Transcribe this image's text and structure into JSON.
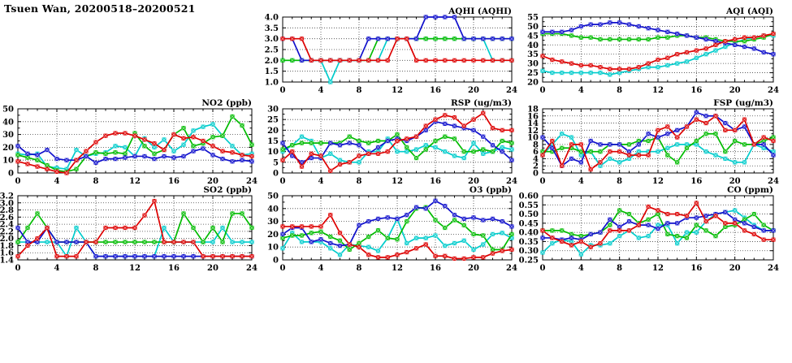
{
  "page_title": "Tsuen Wan, 20200518–20200521",
  "series_colors": {
    "blue": "#1010cc",
    "red": "#dd0000",
    "green": "#00bb00",
    "cyan": "#00cccc"
  },
  "chart_data": [
    {
      "id": "aqhi",
      "type": "line",
      "title": "AQHI (AQHI)",
      "xlim": [
        0,
        24
      ],
      "xtick_step": 4,
      "xminor_step": 1,
      "ylim": [
        1.0,
        4.0
      ],
      "ytick_step": 0.5,
      "ytick_decimals": 1,
      "yminor": false,
      "grid": true,
      "legend": "none",
      "series": [
        {
          "name": "cyan",
          "color": "#00cccc",
          "values": [
            2,
            2,
            2,
            2,
            2,
            1,
            2,
            2,
            2,
            2,
            2,
            3,
            3,
            3,
            3,
            3,
            3,
            3,
            3,
            3,
            3,
            3,
            2,
            2,
            2
          ]
        },
        {
          "name": "green",
          "color": "#00bb00",
          "values": [
            2,
            2,
            2,
            2,
            2,
            2,
            2,
            2,
            2,
            2,
            3,
            3,
            3,
            3,
            3,
            3,
            3,
            3,
            3,
            3,
            3,
            3,
            3,
            3,
            3
          ]
        },
        {
          "name": "blue",
          "color": "#1010cc",
          "values": [
            3,
            3,
            2,
            2,
            2,
            2,
            2,
            2,
            2,
            3,
            3,
            3,
            3,
            3,
            3,
            4,
            4,
            4,
            4,
            3,
            3,
            3,
            3,
            3,
            3
          ]
        },
        {
          "name": "red",
          "color": "#dd0000",
          "values": [
            3,
            3,
            3,
            2,
            2,
            2,
            2,
            2,
            2,
            2,
            2,
            2,
            3,
            3,
            2,
            2,
            2,
            2,
            2,
            2,
            2,
            2,
            2,
            2,
            2
          ]
        }
      ]
    },
    {
      "id": "aqi",
      "type": "line",
      "title": "AQI (AQI)",
      "xlim": [
        0,
        24
      ],
      "xtick_step": 4,
      "xminor_step": 1,
      "ylim": [
        20,
        55
      ],
      "ytick_step": 5,
      "ytick_decimals": 0,
      "yminor": true,
      "grid": true,
      "legend": "none",
      "series": [
        {
          "name": "cyan",
          "color": "#00cccc",
          "values": [
            26,
            25,
            25,
            25,
            25,
            25,
            25,
            24,
            25,
            26,
            27,
            28,
            28,
            29,
            30,
            31,
            33,
            35,
            37,
            39,
            41,
            43,
            44,
            45,
            45
          ]
        },
        {
          "name": "green",
          "color": "#00bb00",
          "values": [
            46,
            46,
            46,
            45,
            44,
            44,
            43,
            43,
            43,
            43,
            43,
            43,
            44,
            44,
            45,
            45,
            44,
            44,
            43,
            42,
            42,
            42,
            43,
            44,
            46
          ]
        },
        {
          "name": "blue",
          "color": "#1010cc",
          "values": [
            47,
            47,
            47,
            48,
            50,
            51,
            51,
            52,
            52,
            51,
            50,
            49,
            48,
            47,
            46,
            45,
            44,
            43,
            42,
            41,
            40,
            39,
            38,
            36,
            35
          ]
        },
        {
          "name": "red",
          "color": "#dd0000",
          "values": [
            34,
            32,
            31,
            30,
            29,
            29,
            28,
            27,
            27,
            27,
            28,
            30,
            32,
            33,
            35,
            36,
            37,
            38,
            40,
            42,
            43,
            44,
            44,
            45,
            46
          ]
        }
      ]
    },
    {
      "id": "no2",
      "type": "line",
      "title": "NO2 (ppb)",
      "xlim": [
        0,
        24
      ],
      "xtick_step": 4,
      "xminor_step": 1,
      "ylim": [
        0,
        50
      ],
      "ytick_step": 10,
      "ytick_decimals": 0,
      "yminor": true,
      "grid": true,
      "legend": "none",
      "series": [
        {
          "name": "cyan",
          "color": "#00cccc",
          "values": [
            15,
            14,
            15,
            5,
            4,
            3,
            18,
            13,
            15,
            16,
            21,
            20,
            13,
            27,
            20,
            26,
            17,
            22,
            33,
            36,
            38,
            29,
            21,
            14,
            15
          ]
        },
        {
          "name": "green",
          "color": "#00bb00",
          "values": [
            14,
            12,
            10,
            6,
            2,
            1,
            3,
            13,
            16,
            15,
            16,
            15,
            31,
            21,
            15,
            18,
            30,
            35,
            21,
            23,
            28,
            29,
            44,
            37,
            22
          ]
        },
        {
          "name": "blue",
          "color": "#1010cc",
          "values": [
            21,
            15,
            14,
            18,
            11,
            10,
            10,
            13,
            8,
            11,
            11,
            12,
            13,
            13,
            11,
            13,
            12,
            13,
            17,
            19,
            14,
            11,
            9,
            10,
            9
          ]
        },
        {
          "name": "red",
          "color": "#dd0000",
          "values": [
            9,
            7,
            5,
            3,
            1,
            0,
            10,
            17,
            24,
            29,
            31,
            31,
            29,
            26,
            23,
            18,
            30,
            27,
            28,
            25,
            21,
            17,
            16,
            14,
            13
          ]
        }
      ]
    },
    {
      "id": "rsp",
      "type": "line",
      "title": "RSP (ug/m3)",
      "xlim": [
        0,
        24
      ],
      "xtick_step": 4,
      "xminor_step": 1,
      "ylim": [
        0,
        30
      ],
      "ytick_step": 5,
      "ytick_decimals": 0,
      "yminor": true,
      "grid": true,
      "legend": "none",
      "series": [
        {
          "name": "cyan",
          "color": "#00cccc",
          "values": [
            10,
            13,
            17,
            15,
            7,
            9,
            6,
            5,
            5,
            10,
            10,
            16,
            10,
            10,
            11,
            13,
            12,
            10,
            8,
            7,
            14,
            9,
            10,
            12,
            11
          ]
        },
        {
          "name": "green",
          "color": "#00bb00",
          "values": [
            11,
            13,
            14,
            14,
            14,
            14,
            14,
            17,
            15,
            14,
            15,
            15,
            18,
            12,
            7,
            11,
            15,
            17,
            16,
            10,
            10,
            11,
            10,
            15,
            14
          ]
        },
        {
          "name": "blue",
          "color": "#1010cc",
          "values": [
            14,
            8,
            5,
            7,
            7,
            14,
            13,
            14,
            13,
            9,
            12,
            15,
            16,
            15,
            17,
            20,
            24,
            23,
            22,
            21,
            20,
            17,
            13,
            10,
            6
          ]
        },
        {
          "name": "red",
          "color": "#dd0000",
          "values": [
            6,
            10,
            3,
            9,
            8,
            1,
            4,
            5,
            8,
            9,
            9,
            10,
            15,
            16,
            17,
            22,
            25,
            27,
            26,
            22,
            25,
            28,
            21,
            20,
            20
          ]
        }
      ]
    },
    {
      "id": "fsp",
      "type": "line",
      "title": "FSP (ug/m3)",
      "xlim": [
        0,
        24
      ],
      "xtick_step": 4,
      "xminor_step": 1,
      "ylim": [
        0,
        18
      ],
      "ytick_step": 2,
      "ytick_decimals": 0,
      "yminor": true,
      "grid": true,
      "legend": "none",
      "series": [
        {
          "name": "cyan",
          "color": "#00cccc",
          "values": [
            5,
            8,
            11,
            10,
            5,
            6,
            2,
            4,
            3,
            4,
            6,
            6,
            6,
            7,
            8,
            8,
            8,
            6,
            5,
            4,
            3,
            3,
            8,
            7,
            6
          ]
        },
        {
          "name": "green",
          "color": "#00bb00",
          "values": [
            6,
            6,
            7,
            7,
            6,
            6,
            6,
            8,
            8,
            8,
            9,
            9,
            10,
            5,
            3,
            7,
            9,
            11,
            11,
            6,
            9,
            8,
            8,
            9,
            10
          ]
        },
        {
          "name": "blue",
          "color": "#1010cc",
          "values": [
            10,
            7,
            2,
            4,
            3,
            9,
            8,
            8,
            8,
            6,
            8,
            11,
            10,
            11,
            12,
            13,
            17,
            16,
            16,
            14,
            12,
            13,
            8,
            8,
            5
          ]
        },
        {
          "name": "red",
          "color": "#dd0000",
          "values": [
            5,
            9,
            2,
            8,
            8,
            1,
            3,
            6,
            6,
            5,
            5,
            5,
            12,
            13,
            10,
            13,
            15,
            14,
            16,
            12,
            12,
            15,
            8,
            10,
            9
          ]
        }
      ]
    },
    {
      "id": "so2",
      "type": "line",
      "title": "SO2 (ppb)",
      "xlim": [
        0,
        24
      ],
      "xtick_step": 4,
      "xminor_step": 1,
      "ylim": [
        1.4,
        3.2
      ],
      "ytick_step": 0.2,
      "ytick_decimals": 1,
      "yminor": false,
      "grid": true,
      "legend": "none",
      "series": [
        {
          "name": "cyan",
          "color": "#00cccc",
          "values": [
            1.9,
            1.9,
            1.9,
            1.9,
            1.9,
            1.5,
            2.3,
            1.9,
            1.5,
            1.5,
            1.5,
            1.5,
            1.5,
            1.5,
            1.5,
            2.3,
            1.9,
            1.9,
            1.9,
            1.9,
            1.9,
            2.3,
            1.9,
            1.9,
            1.9
          ]
        },
        {
          "name": "green",
          "color": "#00bb00",
          "values": [
            1.9,
            2.3,
            2.7,
            2.3,
            1.9,
            1.9,
            1.9,
            1.9,
            1.9,
            1.9,
            1.9,
            1.9,
            1.9,
            1.9,
            1.9,
            1.9,
            1.9,
            2.7,
            2.3,
            1.9,
            2.3,
            1.9,
            2.7,
            2.7,
            2.3
          ]
        },
        {
          "name": "blue",
          "color": "#1010cc",
          "values": [
            2.3,
            1.9,
            1.9,
            2.3,
            1.9,
            1.9,
            1.9,
            1.9,
            1.5,
            1.5,
            1.5,
            1.5,
            1.5,
            1.5,
            1.5,
            1.5,
            1.5,
            1.5,
            1.5,
            1.5,
            1.5,
            1.5,
            1.5,
            1.5,
            1.5
          ]
        },
        {
          "name": "red",
          "color": "#dd0000",
          "values": [
            1.5,
            1.8,
            2.0,
            2.3,
            1.5,
            1.5,
            1.5,
            1.9,
            1.9,
            2.3,
            2.3,
            2.3,
            2.3,
            2.65,
            3.05,
            1.9,
            1.9,
            1.9,
            1.9,
            1.5,
            1.5,
            1.5,
            1.5,
            1.5,
            1.5
          ]
        }
      ]
    },
    {
      "id": "o3",
      "type": "line",
      "title": "O3 (ppb)",
      "xlim": [
        0,
        24
      ],
      "xtick_step": 4,
      "xminor_step": 1,
      "ylim": [
        0,
        50
      ],
      "ytick_step": 10,
      "ytick_decimals": 0,
      "yminor": true,
      "grid": true,
      "legend": "none",
      "series": [
        {
          "name": "cyan",
          "color": "#00cccc",
          "values": [
            9,
            21,
            14,
            14,
            14,
            9,
            4,
            12,
            11,
            10,
            7,
            17,
            32,
            13,
            17,
            17,
            19,
            11,
            13,
            15,
            8,
            12,
            20,
            21,
            17
          ]
        },
        {
          "name": "green",
          "color": "#00bb00",
          "values": [
            17,
            19,
            19,
            21,
            22,
            18,
            15,
            8,
            13,
            18,
            23,
            17,
            16,
            30,
            40,
            41,
            31,
            25,
            31,
            27,
            20,
            19,
            8,
            8,
            20
          ]
        },
        {
          "name": "blue",
          "color": "#1010cc",
          "values": [
            20,
            25,
            25,
            14,
            16,
            13,
            11,
            12,
            27,
            30,
            32,
            33,
            32,
            35,
            41,
            40,
            46,
            42,
            35,
            32,
            33,
            31,
            32,
            30,
            26
          ]
        },
        {
          "name": "red",
          "color": "#dd0000",
          "values": [
            26,
            26,
            26,
            26,
            26,
            35,
            21,
            12,
            10,
            4,
            2,
            2,
            4,
            6,
            9,
            12,
            3,
            3,
            1,
            1,
            2,
            2,
            5,
            7,
            8
          ]
        }
      ]
    },
    {
      "id": "co",
      "type": "line",
      "title": "CO (ppm)",
      "xlim": [
        0,
        24
      ],
      "xtick_step": 4,
      "xminor_step": 1,
      "ylim": [
        0.25,
        0.6
      ],
      "ytick_step": 0.05,
      "ytick_decimals": 2,
      "yminor": false,
      "grid": true,
      "legend": "none",
      "series": [
        {
          "name": "cyan",
          "color": "#00cccc",
          "values": [
            0.29,
            0.34,
            0.36,
            0.35,
            0.28,
            0.33,
            0.33,
            0.34,
            0.38,
            0.41,
            0.37,
            0.38,
            0.44,
            0.44,
            0.34,
            0.4,
            0.4,
            0.46,
            0.5,
            0.51,
            0.52,
            0.48,
            0.44,
            0.41,
            0.41
          ]
        },
        {
          "name": "green",
          "color": "#00bb00",
          "values": [
            0.41,
            0.41,
            0.41,
            0.39,
            0.38,
            0.39,
            0.4,
            0.44,
            0.52,
            0.5,
            0.45,
            0.47,
            0.5,
            0.39,
            0.38,
            0.37,
            0.44,
            0.41,
            0.38,
            0.43,
            0.44,
            0.47,
            0.5,
            0.44,
            0.41
          ]
        },
        {
          "name": "blue",
          "color": "#1010cc",
          "values": [
            0.37,
            0.37,
            0.36,
            0.37,
            0.36,
            0.39,
            0.4,
            0.47,
            0.43,
            0.46,
            0.44,
            0.44,
            0.42,
            0.45,
            0.45,
            0.48,
            0.48,
            0.49,
            0.5,
            0.51,
            0.47,
            0.45,
            0.43,
            0.41,
            0.41
          ]
        },
        {
          "name": "red",
          "color": "#dd0000",
          "values": [
            0.41,
            0.37,
            0.35,
            0.33,
            0.35,
            0.32,
            0.34,
            0.41,
            0.41,
            0.41,
            0.44,
            0.54,
            0.52,
            0.5,
            0.5,
            0.49,
            0.56,
            0.46,
            0.49,
            0.45,
            0.45,
            0.41,
            0.39,
            0.36,
            0.36
          ]
        }
      ]
    }
  ]
}
